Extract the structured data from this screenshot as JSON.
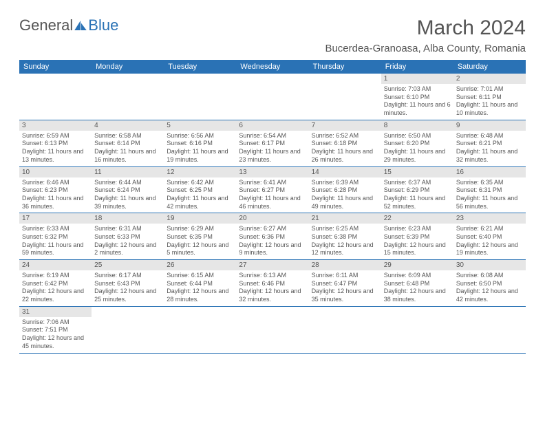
{
  "header": {
    "logo_text_1": "General",
    "logo_text_2": "Blue",
    "month_title": "March 2024",
    "location": "Bucerdea-Granoasa, Alba County, Romania"
  },
  "colors": {
    "header_bg": "#2a72b5",
    "daynum_bg": "#e6e6e6",
    "text": "#555555",
    "border": "#2a72b5"
  },
  "weekdays": [
    "Sunday",
    "Monday",
    "Tuesday",
    "Wednesday",
    "Thursday",
    "Friday",
    "Saturday"
  ],
  "weeks": [
    [
      null,
      null,
      null,
      null,
      null,
      {
        "day": "1",
        "sunrise": "Sunrise: 7:03 AM",
        "sunset": "Sunset: 6:10 PM",
        "daylight": "Daylight: 11 hours and 6 minutes."
      },
      {
        "day": "2",
        "sunrise": "Sunrise: 7:01 AM",
        "sunset": "Sunset: 6:11 PM",
        "daylight": "Daylight: 11 hours and 10 minutes."
      }
    ],
    [
      {
        "day": "3",
        "sunrise": "Sunrise: 6:59 AM",
        "sunset": "Sunset: 6:13 PM",
        "daylight": "Daylight: 11 hours and 13 minutes."
      },
      {
        "day": "4",
        "sunrise": "Sunrise: 6:58 AM",
        "sunset": "Sunset: 6:14 PM",
        "daylight": "Daylight: 11 hours and 16 minutes."
      },
      {
        "day": "5",
        "sunrise": "Sunrise: 6:56 AM",
        "sunset": "Sunset: 6:16 PM",
        "daylight": "Daylight: 11 hours and 19 minutes."
      },
      {
        "day": "6",
        "sunrise": "Sunrise: 6:54 AM",
        "sunset": "Sunset: 6:17 PM",
        "daylight": "Daylight: 11 hours and 23 minutes."
      },
      {
        "day": "7",
        "sunrise": "Sunrise: 6:52 AM",
        "sunset": "Sunset: 6:18 PM",
        "daylight": "Daylight: 11 hours and 26 minutes."
      },
      {
        "day": "8",
        "sunrise": "Sunrise: 6:50 AM",
        "sunset": "Sunset: 6:20 PM",
        "daylight": "Daylight: 11 hours and 29 minutes."
      },
      {
        "day": "9",
        "sunrise": "Sunrise: 6:48 AM",
        "sunset": "Sunset: 6:21 PM",
        "daylight": "Daylight: 11 hours and 32 minutes."
      }
    ],
    [
      {
        "day": "10",
        "sunrise": "Sunrise: 6:46 AM",
        "sunset": "Sunset: 6:23 PM",
        "daylight": "Daylight: 11 hours and 36 minutes."
      },
      {
        "day": "11",
        "sunrise": "Sunrise: 6:44 AM",
        "sunset": "Sunset: 6:24 PM",
        "daylight": "Daylight: 11 hours and 39 minutes."
      },
      {
        "day": "12",
        "sunrise": "Sunrise: 6:42 AM",
        "sunset": "Sunset: 6:25 PM",
        "daylight": "Daylight: 11 hours and 42 minutes."
      },
      {
        "day": "13",
        "sunrise": "Sunrise: 6:41 AM",
        "sunset": "Sunset: 6:27 PM",
        "daylight": "Daylight: 11 hours and 46 minutes."
      },
      {
        "day": "14",
        "sunrise": "Sunrise: 6:39 AM",
        "sunset": "Sunset: 6:28 PM",
        "daylight": "Daylight: 11 hours and 49 minutes."
      },
      {
        "day": "15",
        "sunrise": "Sunrise: 6:37 AM",
        "sunset": "Sunset: 6:29 PM",
        "daylight": "Daylight: 11 hours and 52 minutes."
      },
      {
        "day": "16",
        "sunrise": "Sunrise: 6:35 AM",
        "sunset": "Sunset: 6:31 PM",
        "daylight": "Daylight: 11 hours and 56 minutes."
      }
    ],
    [
      {
        "day": "17",
        "sunrise": "Sunrise: 6:33 AM",
        "sunset": "Sunset: 6:32 PM",
        "daylight": "Daylight: 11 hours and 59 minutes."
      },
      {
        "day": "18",
        "sunrise": "Sunrise: 6:31 AM",
        "sunset": "Sunset: 6:33 PM",
        "daylight": "Daylight: 12 hours and 2 minutes."
      },
      {
        "day": "19",
        "sunrise": "Sunrise: 6:29 AM",
        "sunset": "Sunset: 6:35 PM",
        "daylight": "Daylight: 12 hours and 5 minutes."
      },
      {
        "day": "20",
        "sunrise": "Sunrise: 6:27 AM",
        "sunset": "Sunset: 6:36 PM",
        "daylight": "Daylight: 12 hours and 9 minutes."
      },
      {
        "day": "21",
        "sunrise": "Sunrise: 6:25 AM",
        "sunset": "Sunset: 6:38 PM",
        "daylight": "Daylight: 12 hours and 12 minutes."
      },
      {
        "day": "22",
        "sunrise": "Sunrise: 6:23 AM",
        "sunset": "Sunset: 6:39 PM",
        "daylight": "Daylight: 12 hours and 15 minutes."
      },
      {
        "day": "23",
        "sunrise": "Sunrise: 6:21 AM",
        "sunset": "Sunset: 6:40 PM",
        "daylight": "Daylight: 12 hours and 19 minutes."
      }
    ],
    [
      {
        "day": "24",
        "sunrise": "Sunrise: 6:19 AM",
        "sunset": "Sunset: 6:42 PM",
        "daylight": "Daylight: 12 hours and 22 minutes."
      },
      {
        "day": "25",
        "sunrise": "Sunrise: 6:17 AM",
        "sunset": "Sunset: 6:43 PM",
        "daylight": "Daylight: 12 hours and 25 minutes."
      },
      {
        "day": "26",
        "sunrise": "Sunrise: 6:15 AM",
        "sunset": "Sunset: 6:44 PM",
        "daylight": "Daylight: 12 hours and 28 minutes."
      },
      {
        "day": "27",
        "sunrise": "Sunrise: 6:13 AM",
        "sunset": "Sunset: 6:46 PM",
        "daylight": "Daylight: 12 hours and 32 minutes."
      },
      {
        "day": "28",
        "sunrise": "Sunrise: 6:11 AM",
        "sunset": "Sunset: 6:47 PM",
        "daylight": "Daylight: 12 hours and 35 minutes."
      },
      {
        "day": "29",
        "sunrise": "Sunrise: 6:09 AM",
        "sunset": "Sunset: 6:48 PM",
        "daylight": "Daylight: 12 hours and 38 minutes."
      },
      {
        "day": "30",
        "sunrise": "Sunrise: 6:08 AM",
        "sunset": "Sunset: 6:50 PM",
        "daylight": "Daylight: 12 hours and 42 minutes."
      }
    ],
    [
      {
        "day": "31",
        "sunrise": "Sunrise: 7:06 AM",
        "sunset": "Sunset: 7:51 PM",
        "daylight": "Daylight: 12 hours and 45 minutes."
      },
      null,
      null,
      null,
      null,
      null,
      null
    ]
  ]
}
